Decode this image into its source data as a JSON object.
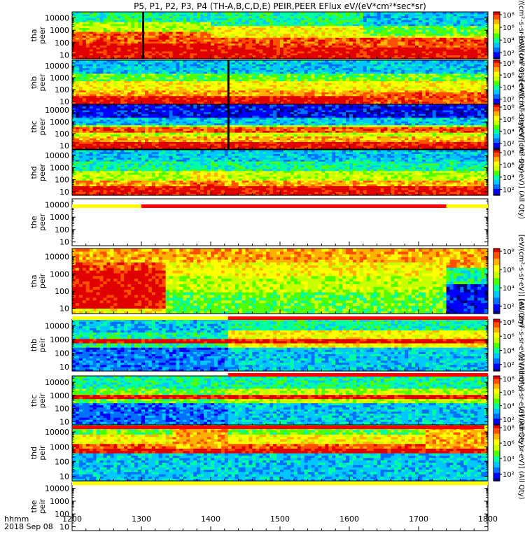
{
  "chart_data": {
    "type": "heatmap",
    "title": "P5, P1, P2, P3, P4 (TH-A,B,C,D,E) PEIR,PEER EFlux eV/(eV*cm²*sec*sr)",
    "x_axis": {
      "label_line1": "hhmm",
      "label_line2": "2018 Sep 08",
      "ticks": [
        "1200",
        "1300",
        "1400",
        "1500",
        "1600",
        "1700",
        "1800"
      ],
      "range_hhmm": [
        1200,
        1800
      ]
    },
    "colorbar_ticks": [
      "10⁸",
      "10⁶",
      "10⁴",
      "10²"
    ],
    "colorbar_label": "[eV/(cm²-s-sr-eV)] (All Qty)",
    "panels": [
      {
        "probe": "tha",
        "species": "peer",
        "ylabel1": "tha",
        "ylabel2": "peer",
        "yticks": [
          "10000",
          "1000",
          "100",
          "10"
        ],
        "has_data": true,
        "colorbar": true,
        "kind": "tha_peer"
      },
      {
        "probe": "thb",
        "species": "peer",
        "ylabel1": "thb",
        "ylabel2": "peer",
        "yticks": [
          "10000",
          "1000",
          "100",
          "10"
        ],
        "has_data": true,
        "colorbar": true,
        "kind": "thb_peer"
      },
      {
        "probe": "thc",
        "species": "peer",
        "ylabel1": "thc",
        "ylabel2": "peer",
        "yticks": [
          "10000",
          "1000",
          "100",
          "10"
        ],
        "has_data": true,
        "colorbar": true,
        "kind": "thc_peer"
      },
      {
        "probe": "thd",
        "species": "peer",
        "ylabel1": "thd",
        "ylabel2": "peer",
        "yticks": [
          "10000",
          "1000",
          "100",
          "10"
        ],
        "has_data": true,
        "colorbar": true,
        "kind": "thd_peer"
      },
      {
        "probe": "the",
        "species": "peer",
        "ylabel1": "the",
        "ylabel2": "peer",
        "yticks": [
          "10000",
          "1000",
          "100",
          "10"
        ],
        "has_data": false,
        "colorbar": false,
        "kind": "empty"
      },
      {
        "probe": "tha",
        "species": "peir",
        "ylabel1": "tha",
        "ylabel2": "peir",
        "yticks": [
          "10000",
          "1000",
          "100",
          "10"
        ],
        "has_data": true,
        "colorbar": true,
        "kind": "tha_peir"
      },
      {
        "probe": "thb",
        "species": "peir",
        "ylabel1": "thb",
        "ylabel2": "peir",
        "yticks": [
          "10000",
          "1000",
          "100",
          "10"
        ],
        "has_data": true,
        "colorbar": true,
        "kind": "thb_peir"
      },
      {
        "probe": "thc",
        "species": "peir",
        "ylabel1": "thc",
        "ylabel2": "peir",
        "yticks": [
          "10000",
          "1000",
          "100",
          "10"
        ],
        "has_data": true,
        "colorbar": true,
        "kind": "thc_peir"
      },
      {
        "probe": "thd",
        "species": "peir",
        "ylabel1": "thd",
        "ylabel2": "peir",
        "yticks": [
          "10000",
          "1000",
          "100",
          "10"
        ],
        "has_data": true,
        "colorbar": true,
        "kind": "thd_peir"
      },
      {
        "probe": "the",
        "species": "peir",
        "ylabel1": "the",
        "ylabel2": "peir",
        "yticks": [
          "10000",
          "1000",
          "100",
          "10"
        ],
        "has_data": false,
        "colorbar": false,
        "kind": "empty"
      }
    ],
    "mode_bars_hhmm": [
      {
        "segments": [
          {
            "from": 1200,
            "to": 1300,
            "color": "#ffff00"
          },
          {
            "from": 1300,
            "to": 1740,
            "color": "#ff0000"
          },
          {
            "from": 1740,
            "to": 1800,
            "color": "#ffff00"
          }
        ]
      },
      {
        "segments": [
          {
            "from": 1200,
            "to": 1425,
            "color": "#ffff00"
          },
          {
            "from": 1425,
            "to": 1800,
            "color": "#ff0000"
          }
        ]
      },
      {
        "segments": [
          {
            "from": 1425,
            "to": 1800,
            "color": "#ff0000"
          }
        ]
      },
      {
        "segments": [
          {
            "from": 1200,
            "to": 1795,
            "color": "#ff0000"
          }
        ]
      },
      {
        "segments": [
          {
            "from": 1200,
            "to": 1800,
            "color": "#ffff00"
          }
        ]
      }
    ],
    "colors": {
      "palette": [
        "#00007f",
        "#0000ff",
        "#0070ff",
        "#00c8ff",
        "#00ffa0",
        "#50ff00",
        "#c8ff00",
        "#ffff00",
        "#ffb000",
        "#ff5000",
        "#e00000"
      ]
    }
  }
}
